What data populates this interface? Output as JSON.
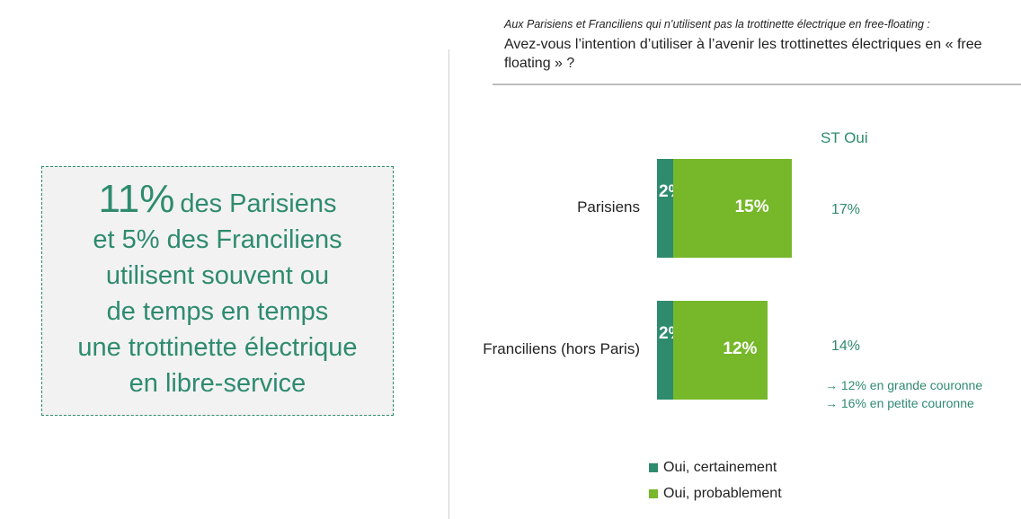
{
  "callout": {
    "big": "11%",
    "line1_rest": "des Parisiens",
    "lines": [
      "et 5% des Franciliens",
      "utilisent souvent ou",
      "de temps en temps",
      "une trottinette électrique",
      "en libre-service"
    ]
  },
  "question": {
    "sub": "Aux Parisiens et Franciliens qui n’utilisent pas la trottinette électrique en free-floating :",
    "main": "Avez-vous l’intention d’utiliser à l’avenir les trottinettes électriques en « free floating » ?"
  },
  "colors": {
    "certainement": "#2e8b6e",
    "probablement": "#76b82a"
  },
  "chart_data": {
    "type": "bar",
    "orientation": "horizontal",
    "stacked": true,
    "categories": [
      "Parisiens",
      "Franciliens (hors Paris)"
    ],
    "series": [
      {
        "name": "Oui, certainement",
        "values": [
          2,
          2
        ],
        "labels": [
          "2%",
          "2%"
        ]
      },
      {
        "name": "Oui, probablement",
        "values": [
          15,
          12
        ],
        "labels": [
          "15%",
          "12%"
        ]
      }
    ],
    "st_header": "ST Oui",
    "st_values": [
      "17%",
      "14%"
    ],
    "notes": [
      "→ 12% en grande couronne",
      "→ 16% en petite couronne"
    ],
    "legend_position": "bottom"
  }
}
